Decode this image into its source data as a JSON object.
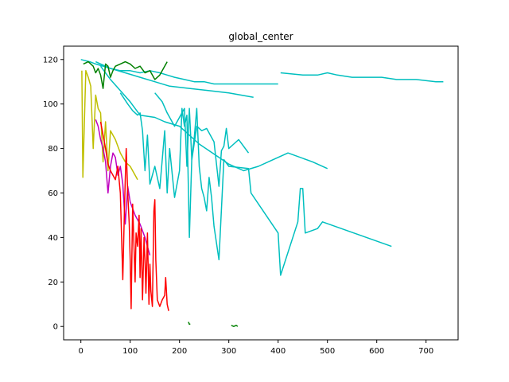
{
  "chart_data": {
    "type": "line",
    "title": "global_center",
    "xlabel": "",
    "ylabel": "",
    "xlim": [
      -35,
      765
    ],
    "ylim": [
      -6,
      126
    ],
    "x_ticks": [
      0,
      100,
      200,
      300,
      400,
      500,
      600,
      700
    ],
    "y_ticks": [
      0,
      20,
      40,
      60,
      80,
      100,
      120
    ],
    "x_tick_labels": [
      "0",
      "100",
      "200",
      "300",
      "400",
      "500",
      "600",
      "700"
    ],
    "y_tick_labels": [
      "0",
      "20",
      "40",
      "60",
      "80",
      "100",
      "120"
    ],
    "grid": false,
    "legend": "none",
    "series": [
      {
        "color": "#00bfbf",
        "lines": [
          [
            [
              0,
              120
            ],
            [
              18,
              119
            ],
            [
              30,
              118
            ],
            [
              45,
              117
            ],
            [
              60,
              116
            ],
            [
              80,
              115
            ],
            [
              100,
              115
            ],
            [
              120,
              114
            ],
            [
              140,
              115
            ],
            [
              160,
              114
            ],
            [
              175,
              113
            ],
            [
              190,
              112
            ],
            [
              210,
              111
            ],
            [
              230,
              110
            ],
            [
              250,
              110
            ],
            [
              270,
              109
            ],
            [
              290,
              109
            ],
            [
              310,
              109
            ],
            [
              330,
              109
            ],
            [
              350,
              109
            ],
            [
              400,
              109
            ]
          ],
          [
            [
              30,
              119
            ],
            [
              60,
              116
            ],
            [
              90,
              114
            ],
            [
              120,
              112
            ],
            [
              150,
              110
            ],
            [
              180,
              108
            ],
            [
              220,
              107
            ],
            [
              260,
              106
            ],
            [
              300,
              105
            ],
            [
              350,
              103
            ]
          ],
          [
            [
              405,
              114
            ],
            [
              450,
              113
            ],
            [
              480,
              113
            ],
            [
              500,
              114
            ],
            [
              520,
              113
            ],
            [
              550,
              112
            ],
            [
              580,
              112
            ],
            [
              610,
              112
            ],
            [
              640,
              111
            ],
            [
              680,
              111
            ],
            [
              720,
              110
            ],
            [
              735,
              110
            ]
          ],
          [
            [
              40,
              117
            ],
            [
              60,
              111
            ],
            [
              80,
              106
            ],
            [
              100,
              101
            ],
            [
              110,
              98
            ],
            [
              120,
              95
            ],
            [
              150,
              94
            ],
            [
              170,
              92
            ],
            [
              200,
              90
            ],
            [
              220,
              86
            ],
            [
              240,
              82
            ],
            [
              260,
              79
            ],
            [
              280,
              76
            ],
            [
              300,
              73
            ],
            [
              330,
              70
            ],
            [
              360,
              72
            ],
            [
              390,
              75
            ],
            [
              420,
              78
            ],
            [
              470,
              74
            ],
            [
              500,
              71
            ]
          ],
          [
            [
              80,
              105
            ],
            [
              95,
              100
            ],
            [
              105,
              97
            ],
            [
              115,
              95
            ],
            [
              120,
              96
            ],
            [
              125,
              88
            ],
            [
              130,
              70
            ],
            [
              135,
              86
            ],
            [
              140,
              64
            ],
            [
              150,
              72
            ],
            [
              160,
              62
            ],
            [
              170,
              88
            ],
            [
              175,
              60
            ],
            [
              180,
              80
            ],
            [
              190,
              58
            ],
            [
              200,
              70
            ],
            [
              205,
              98
            ],
            [
              210,
              90
            ],
            [
              215,
              95
            ],
            [
              220,
              40
            ],
            [
              225,
              76
            ],
            [
              230,
              85
            ],
            [
              235,
              98
            ],
            [
              240,
              72
            ],
            [
              245,
              62
            ],
            [
              250,
              58
            ],
            [
              255,
              52
            ],
            [
              260,
              67
            ],
            [
              265,
              58
            ],
            [
              270,
              45
            ],
            [
              280,
              30
            ],
            [
              290,
              75
            ],
            [
              300,
              72
            ],
            [
              340,
              71
            ],
            [
              345,
              60
            ],
            [
              400,
              42
            ],
            [
              405,
              23
            ],
            [
              440,
              47
            ],
            [
              445,
              62
            ],
            [
              450,
              62
            ],
            [
              455,
              42
            ],
            [
              480,
              44
            ],
            [
              490,
              47
            ],
            [
              630,
              36
            ]
          ],
          [
            [
              150,
              105
            ],
            [
              165,
              101
            ],
            [
              175,
              96
            ],
            [
              190,
              90
            ],
            [
              210,
              98
            ],
            [
              215,
              72
            ],
            [
              220,
              98
            ],
            [
              225,
              75
            ],
            [
              235,
              90
            ],
            [
              245,
              88
            ],
            [
              255,
              89
            ],
            [
              270,
              83
            ],
            [
              280,
              63
            ],
            [
              285,
              79
            ],
            [
              290,
              81
            ],
            [
              295,
              89
            ],
            [
              300,
              80
            ],
            [
              310,
              82
            ],
            [
              320,
              84
            ],
            [
              340,
              78
            ]
          ]
        ]
      },
      {
        "color": "#008000",
        "lines": [
          [
            [
              5,
              118
            ],
            [
              15,
              119
            ],
            [
              25,
              117
            ],
            [
              30,
              114
            ],
            [
              35,
              116
            ],
            [
              40,
              113
            ],
            [
              45,
              107
            ],
            [
              50,
              118
            ],
            [
              55,
              117
            ],
            [
              60,
              112
            ],
            [
              65,
              115
            ],
            [
              70,
              117
            ],
            [
              80,
              118
            ],
            [
              90,
              119
            ],
            [
              100,
              118
            ],
            [
              110,
              116
            ],
            [
              120,
              117
            ],
            [
              130,
              114
            ],
            [
              140,
              115
            ],
            [
              150,
              111
            ],
            [
              160,
              113
            ],
            [
              175,
              119
            ]
          ],
          [
            [
              218,
              2
            ],
            [
              220,
              1
            ],
            [
              222,
              1
            ]
          ],
          [
            [
              305,
              0.5
            ],
            [
              310,
              0
            ],
            [
              315,
              0.5
            ],
            [
              318,
              0
            ]
          ]
        ]
      },
      {
        "color": "#bfbf00",
        "lines": [
          [
            [
              2,
              115
            ],
            [
              4,
              67
            ],
            [
              10,
              115
            ],
            [
              15,
              112
            ],
            [
              20,
              108
            ],
            [
              25,
              80
            ],
            [
              30,
              104
            ],
            [
              35,
              98
            ],
            [
              40,
              96
            ],
            [
              45,
              74
            ],
            [
              50,
              92
            ],
            [
              55,
              70
            ],
            [
              60,
              88
            ],
            [
              70,
              84
            ],
            [
              80,
              78
            ],
            [
              90,
              74
            ],
            [
              100,
              72
            ],
            [
              110,
              68
            ],
            [
              115,
              66
            ]
          ]
        ]
      },
      {
        "color": "#bf00bf",
        "lines": [
          [
            [
              30,
              93
            ],
            [
              35,
              90
            ],
            [
              40,
              84
            ],
            [
              45,
              80
            ],
            [
              50,
              74
            ],
            [
              55,
              60
            ],
            [
              60,
              72
            ],
            [
              65,
              78
            ],
            [
              70,
              76
            ],
            [
              75,
              68
            ],
            [
              80,
              72
            ],
            [
              85,
              64
            ],
            [
              90,
              46
            ],
            [
              95,
              63
            ],
            [
              100,
              56
            ],
            [
              110,
              50
            ],
            [
              120,
              46
            ],
            [
              130,
              40
            ],
            [
              140,
              32
            ]
          ]
        ]
      },
      {
        "color": "#ff0000",
        "lines": [
          [
            [
              40,
              92
            ],
            [
              45,
              86
            ],
            [
              50,
              80
            ],
            [
              55,
              73
            ],
            [
              60,
              70
            ],
            [
              65,
              68
            ],
            [
              70,
              66
            ],
            [
              75,
              72
            ],
            [
              80,
              60
            ],
            [
              85,
              21
            ],
            [
              88,
              50
            ],
            [
              90,
              66
            ],
            [
              92,
              80
            ],
            [
              95,
              60
            ],
            [
              98,
              46
            ],
            [
              100,
              30
            ],
            [
              102,
              8
            ],
            [
              105,
              55
            ],
            [
              110,
              20
            ],
            [
              112,
              42
            ],
            [
              115,
              36
            ],
            [
              118,
              50
            ],
            [
              120,
              22
            ],
            [
              122,
              44
            ],
            [
              125,
              12
            ],
            [
              128,
              40
            ],
            [
              130,
              30
            ],
            [
              132,
              15
            ],
            [
              135,
              42
            ],
            [
              138,
              10
            ],
            [
              140,
              28
            ],
            [
              142,
              16
            ],
            [
              145,
              9
            ],
            [
              148,
              52
            ],
            [
              150,
              57
            ],
            [
              152,
              30
            ],
            [
              155,
              12
            ],
            [
              160,
              9
            ],
            [
              165,
              12
            ],
            [
              170,
              14
            ],
            [
              172,
              22
            ],
            [
              175,
              10
            ],
            [
              178,
              7
            ]
          ]
        ]
      }
    ]
  }
}
